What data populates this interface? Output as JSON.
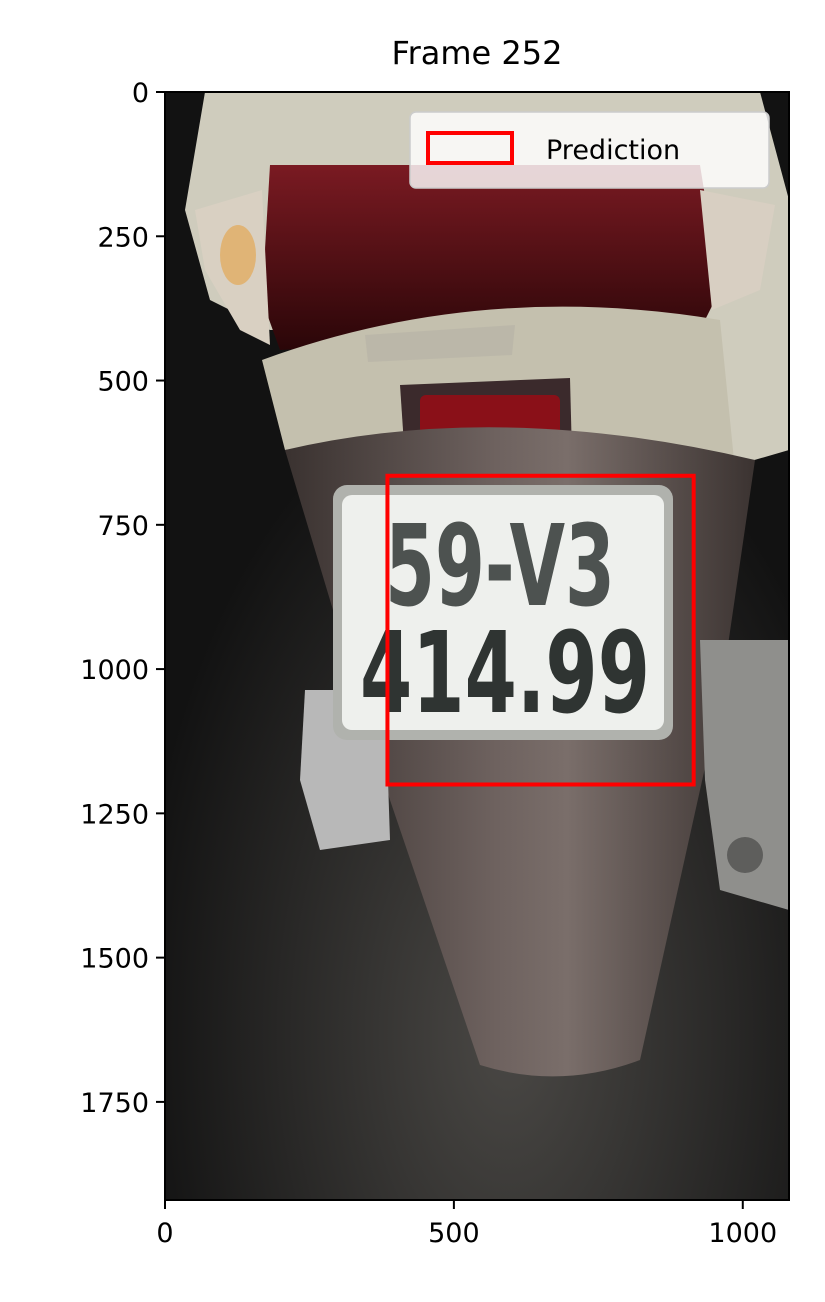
{
  "chart_data": {
    "type": "image",
    "title": "Frame 252",
    "xlim": [
      0,
      1080
    ],
    "ylim": [
      1920,
      0
    ],
    "x_ticks": [
      0,
      500,
      1000
    ],
    "y_ticks": [
      0,
      250,
      500,
      750,
      1000,
      1250,
      1500,
      1750
    ],
    "x_tick_labels": [
      "0",
      "500",
      "1000"
    ],
    "y_tick_labels": [
      "0",
      "250",
      "500",
      "750",
      "1000",
      "1250",
      "1500",
      "1750"
    ],
    "legend": {
      "entries": [
        "Prediction"
      ],
      "placement": "upper right"
    },
    "boxes": [
      {
        "label": "Prediction",
        "x0": 385,
        "y0": 665,
        "x1": 915,
        "y1": 1200,
        "color": "#ff0000"
      }
    ],
    "plate_text": {
      "line1": "59-V3",
      "line2": "414.99"
    }
  }
}
